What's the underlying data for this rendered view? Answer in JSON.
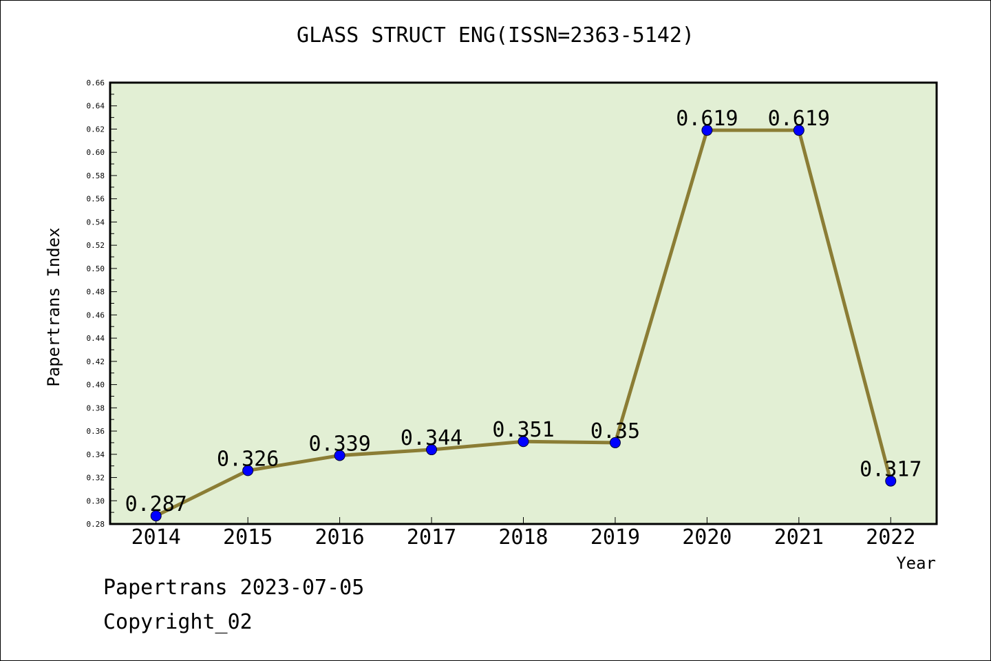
{
  "title": "GLASS STRUCT ENG(ISSN=2363-5142)",
  "footer": {
    "line1": "Papertrans 2023-07-05",
    "line2": "Copyright_02"
  },
  "chart_data": {
    "type": "line",
    "title": "GLASS STRUCT ENG(ISSN=2363-5142)",
    "xlabel": "Year",
    "ylabel": "Papertrans Index",
    "categories": [
      "2014",
      "2015",
      "2016",
      "2017",
      "2018",
      "2019",
      "2020",
      "2021",
      "2022"
    ],
    "values": [
      0.287,
      0.326,
      0.339,
      0.344,
      0.351,
      0.35,
      0.619,
      0.619,
      0.317
    ],
    "data_labels": [
      "0.287",
      "0.326",
      "0.339",
      "0.344",
      "0.351",
      "0.35",
      "0.619",
      "0.619",
      "0.317"
    ],
    "ylim": [
      0.28,
      0.66
    ],
    "yticks": [
      "0.28",
      "0.30",
      "0.32",
      "0.34",
      "0.36",
      "0.38",
      "0.40",
      "0.42",
      "0.44",
      "0.46",
      "0.48",
      "0.50",
      "0.52",
      "0.54",
      "0.56",
      "0.58",
      "0.60",
      "0.62",
      "0.64",
      "0.66"
    ],
    "grid": false,
    "colors": {
      "plot_background": "#e2efd4",
      "line": "#8b7d35",
      "marker": "#0000ff"
    }
  }
}
